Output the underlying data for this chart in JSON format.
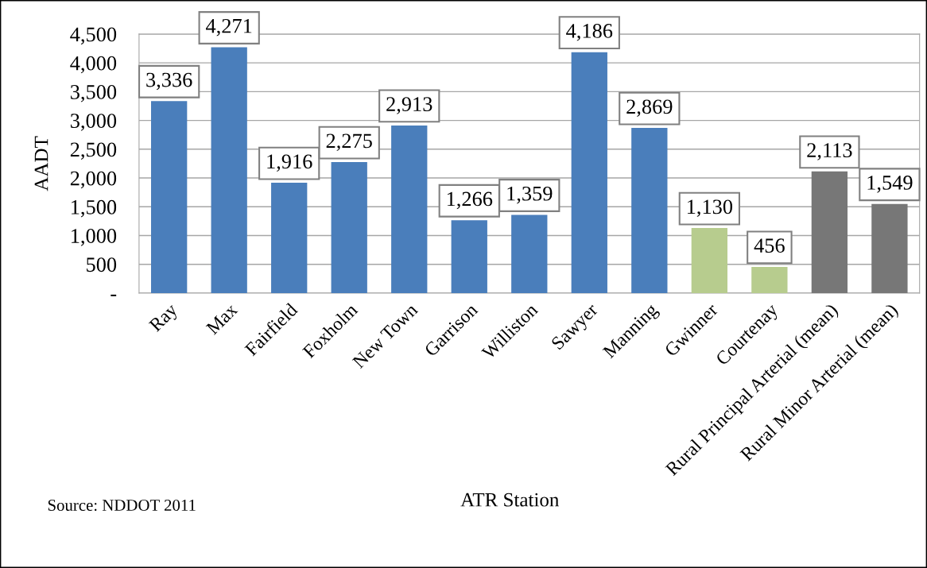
{
  "chart_data": {
    "type": "bar",
    "categories": [
      "Ray",
      "Max",
      "Fairfield",
      "Foxholm",
      "New Town",
      "Garrison",
      "Williston",
      "Sawyer",
      "Manning",
      "Gwinner",
      "Courtenay",
      "Rural Principal Arterial (mean)",
      "Rural Minor Arterial (mean)"
    ],
    "values": [
      3336,
      4271,
      1916,
      2275,
      2913,
      1266,
      1359,
      4186,
      2869,
      1130,
      456,
      2113,
      1549
    ],
    "colors": [
      "#4a7ebb",
      "#4a7ebb",
      "#4a7ebb",
      "#4a7ebb",
      "#4a7ebb",
      "#4a7ebb",
      "#4a7ebb",
      "#4a7ebb",
      "#4a7ebb",
      "#b7cc8e",
      "#b7cc8e",
      "#777777",
      "#777777"
    ],
    "xlabel": "ATR Station",
    "ylabel": "AADT",
    "ylim": [
      0,
      4500
    ],
    "yticks": [
      {
        "value": 0,
        "label": "-"
      },
      {
        "value": 500,
        "label": "500"
      },
      {
        "value": 1000,
        "label": "1,000"
      },
      {
        "value": 1500,
        "label": "1,500"
      },
      {
        "value": 2000,
        "label": "2,000"
      },
      {
        "value": 2500,
        "label": "2,500"
      },
      {
        "value": 3000,
        "label": "3,000"
      },
      {
        "value": 3500,
        "label": "3,500"
      },
      {
        "value": 4000,
        "label": "4,000"
      },
      {
        "value": 4500,
        "label": "4,500"
      }
    ],
    "value_labels": [
      "3,336",
      "4,271",
      "1,916",
      "2,275",
      "2,913",
      "1,266",
      "1,359",
      "4,186",
      "2,869",
      "1,130",
      "456",
      "2,113",
      "1,549"
    ],
    "grid": "y",
    "legend": false,
    "annotations": [
      "Source: NDDOT 2011"
    ]
  }
}
